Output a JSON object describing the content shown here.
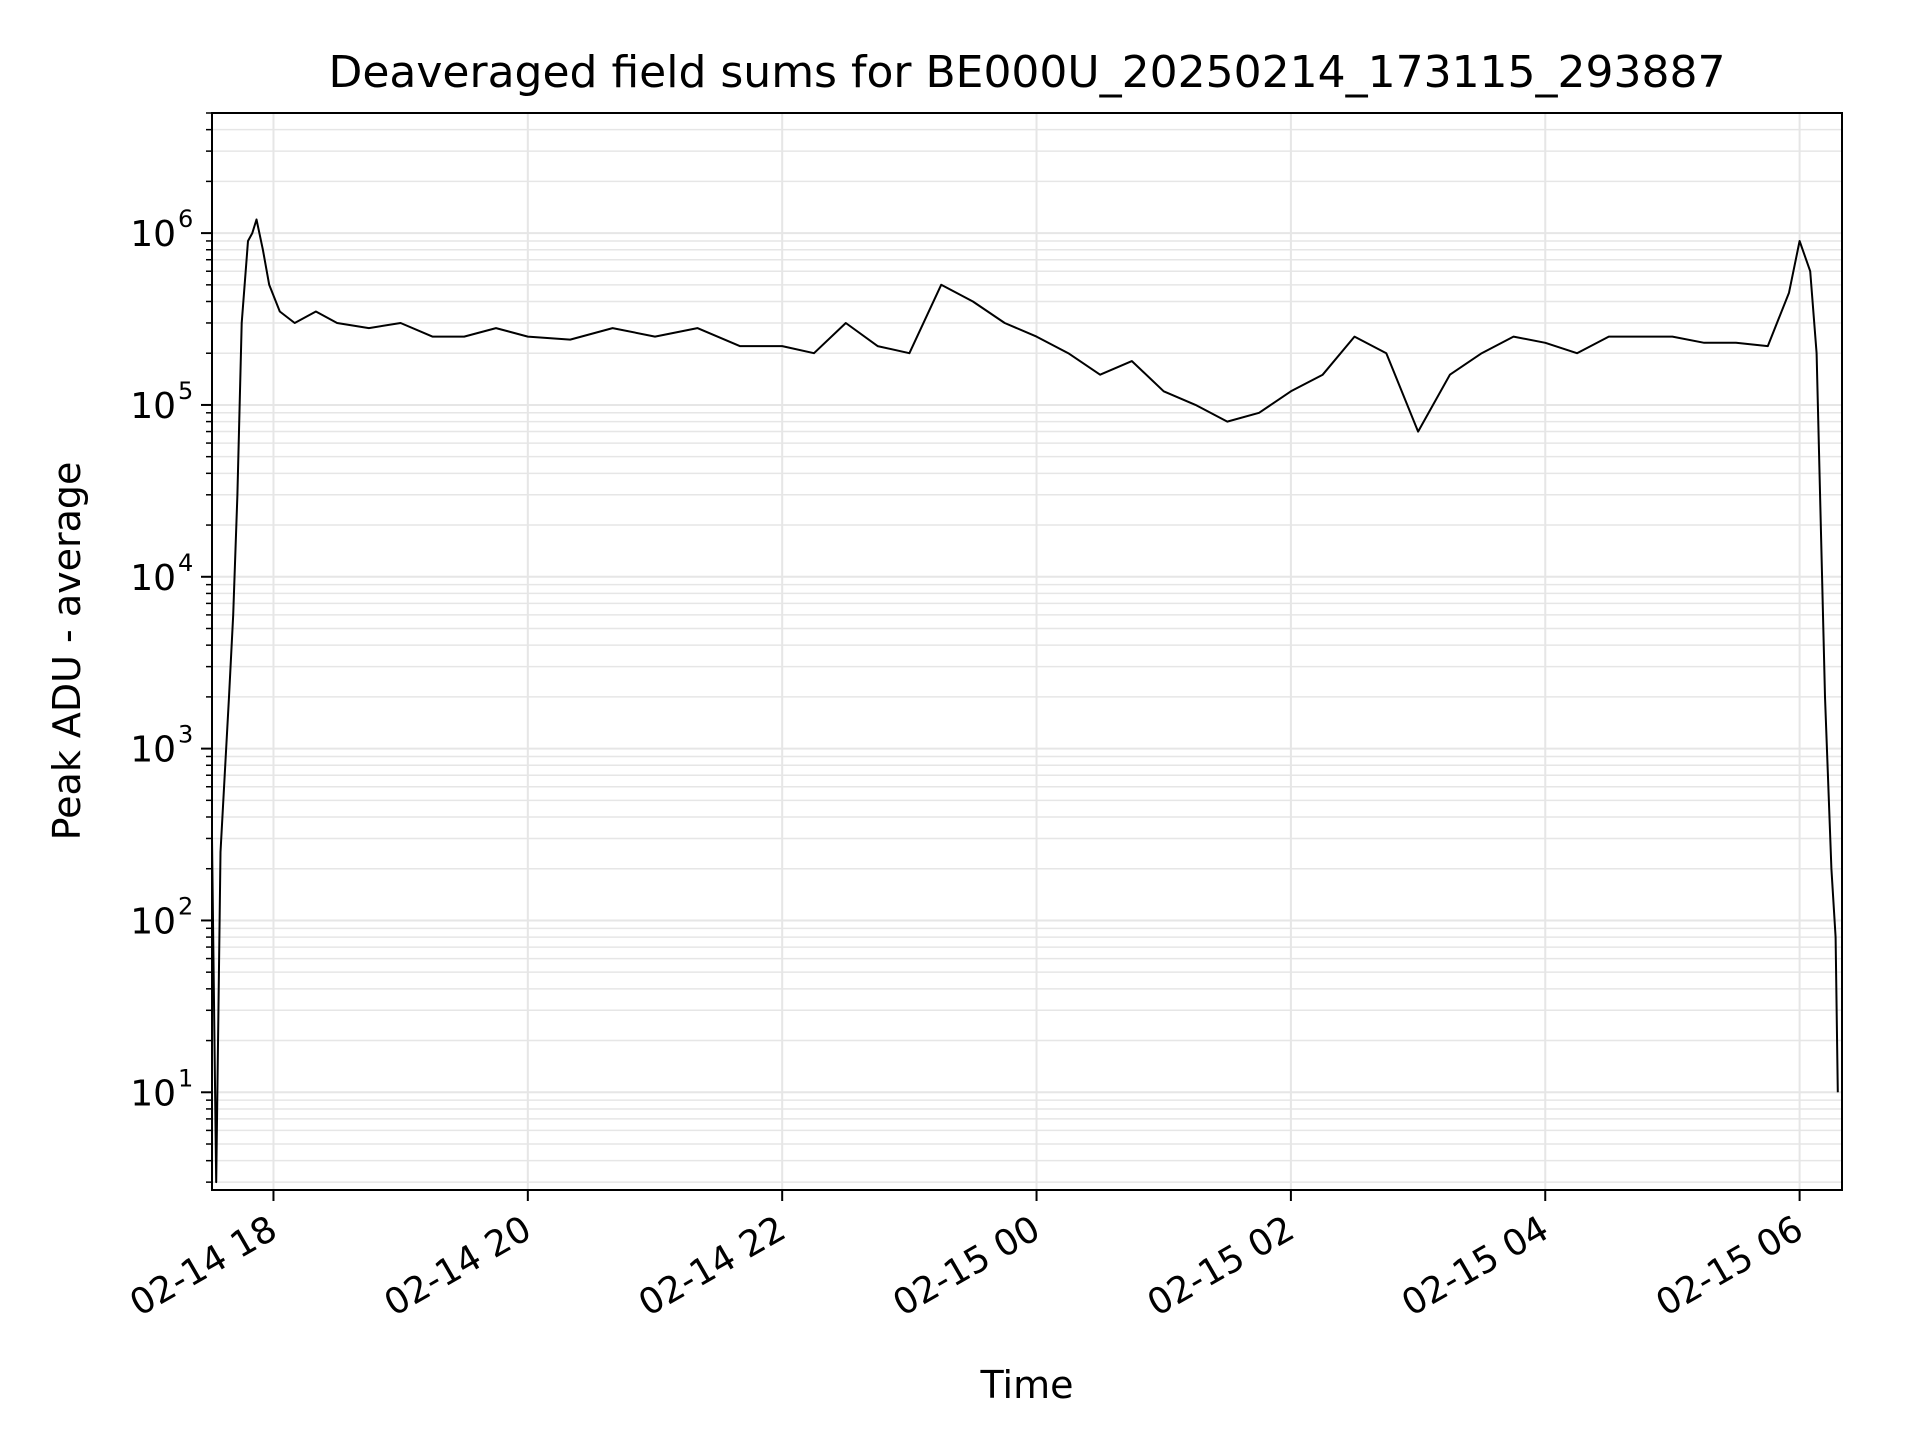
{
  "chart_data": {
    "type": "line",
    "title": "Deaveraged field sums for BE000U_20250214_173115_293887",
    "xlabel": "Time",
    "ylabel": "Peak ADU - average",
    "x_scale": "time",
    "y_scale": "log",
    "xlim": [
      "2025-02-14 17:31",
      "2025-02-15 06:20"
    ],
    "ylim": [
      2.7,
      5000000
    ],
    "grid": true,
    "x_ticks": [
      "02-14 18",
      "02-14 20",
      "02-14 22",
      "02-15 00",
      "02-15 02",
      "02-15 04",
      "02-15 06"
    ],
    "y_ticks": [
      {
        "base": "10",
        "exp": "1"
      },
      {
        "base": "10",
        "exp": "2"
      },
      {
        "base": "10",
        "exp": "3"
      },
      {
        "base": "10",
        "exp": "4"
      },
      {
        "base": "10",
        "exp": "5"
      },
      {
        "base": "10",
        "exp": "6"
      }
    ],
    "line_color": "#000000",
    "grid_color": "#e6e6e6",
    "series": [
      {
        "x": [
          "2025-02-14 17:31",
          "2025-02-14 17:33",
          "2025-02-14 17:35",
          "2025-02-14 17:37",
          "2025-02-14 17:39",
          "2025-02-14 17:41",
          "2025-02-14 17:43",
          "2025-02-14 17:45",
          "2025-02-14 17:48",
          "2025-02-14 17:50",
          "2025-02-14 17:52",
          "2025-02-14 17:55",
          "2025-02-14 17:58",
          "2025-02-14 18:03",
          "2025-02-14 18:10",
          "2025-02-14 18:20",
          "2025-02-14 18:30",
          "2025-02-14 18:45",
          "2025-02-14 19:00",
          "2025-02-14 19:15",
          "2025-02-14 19:30",
          "2025-02-14 19:45",
          "2025-02-14 20:00",
          "2025-02-14 20:20",
          "2025-02-14 20:40",
          "2025-02-14 21:00",
          "2025-02-14 21:20",
          "2025-02-14 21:40",
          "2025-02-14 22:00",
          "2025-02-14 22:15",
          "2025-02-14 22:30",
          "2025-02-14 22:45",
          "2025-02-14 23:00",
          "2025-02-14 23:15",
          "2025-02-14 23:30",
          "2025-02-14 23:45",
          "2025-02-15 00:00",
          "2025-02-15 00:15",
          "2025-02-15 00:30",
          "2025-02-15 00:45",
          "2025-02-15 01:00",
          "2025-02-15 01:15",
          "2025-02-15 01:30",
          "2025-02-15 01:45",
          "2025-02-15 02:00",
          "2025-02-15 02:15",
          "2025-02-15 02:30",
          "2025-02-15 02:45",
          "2025-02-15 03:00",
          "2025-02-15 03:15",
          "2025-02-15 03:30",
          "2025-02-15 03:45",
          "2025-02-15 04:00",
          "2025-02-15 04:15",
          "2025-02-15 04:30",
          "2025-02-15 04:45",
          "2025-02-15 05:00",
          "2025-02-15 05:15",
          "2025-02-15 05:30",
          "2025-02-15 05:45",
          "2025-02-15 05:55",
          "2025-02-15 06:00",
          "2025-02-15 06:05",
          "2025-02-15 06:08",
          "2025-02-15 06:12",
          "2025-02-15 06:15",
          "2025-02-15 06:17",
          "2025-02-15 06:18"
        ],
        "y": [
          300,
          3,
          250,
          700,
          2000,
          6000,
          30000,
          300000,
          900000,
          1000000,
          1200000,
          800000,
          500000,
          350000,
          300000,
          350000,
          300000,
          280000,
          300000,
          250000,
          250000,
          280000,
          250000,
          240000,
          280000,
          250000,
          280000,
          220000,
          220000,
          200000,
          300000,
          220000,
          200000,
          500000,
          400000,
          300000,
          250000,
          200000,
          150000,
          180000,
          120000,
          100000,
          80000,
          90000,
          120000,
          150000,
          250000,
          200000,
          70000,
          150000,
          200000,
          250000,
          230000,
          200000,
          250000,
          250000,
          250000,
          230000,
          230000,
          220000,
          450000,
          900000,
          600000,
          200000,
          2000,
          200,
          80,
          10
        ]
      }
    ]
  }
}
